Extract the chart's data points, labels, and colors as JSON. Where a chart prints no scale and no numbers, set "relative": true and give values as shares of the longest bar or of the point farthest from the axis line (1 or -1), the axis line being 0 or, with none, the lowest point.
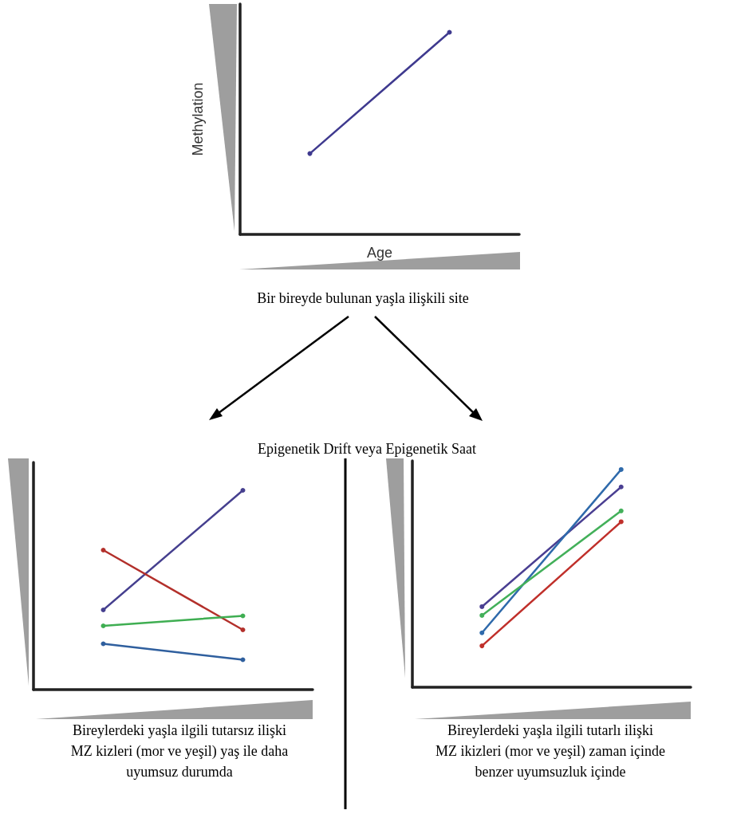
{
  "chart_data": [
    {
      "type": "line",
      "xlabel": "Age",
      "ylabel": "Methylation",
      "categories": [
        null,
        null
      ],
      "relative": true,
      "marker": "circle",
      "series": [
        {
          "color": "#3f3a8f",
          "values": [
            0.4,
            1
          ]
        }
      ],
      "annotations": [
        "Bir bireyde bulunan yaşla ilişkili site",
        "Epigenetik Drift veya Epigenetik Saat"
      ]
    },
    {
      "type": "line",
      "categories": [
        null,
        null
      ],
      "relative": true,
      "marker": "circle",
      "series": [
        {
          "color": "#46408f",
          "values": [
            0.4,
            1
          ]
        },
        {
          "color": "#b3302b",
          "values": [
            0.7,
            0.3
          ]
        },
        {
          "color": "#3fae52",
          "values": [
            0.32,
            0.37
          ]
        },
        {
          "color": "#2f5f9e",
          "values": [
            0.23,
            0.15
          ]
        }
      ],
      "annotations": [
        "Bireylerdeki yaşla ilgili tutarsız ilişki",
        "MZ kizleri (mor ve yeşil) yaş ile daha",
        "uyumsuz durumda"
      ]
    },
    {
      "type": "line",
      "categories": [
        null,
        null
      ],
      "relative": true,
      "marker": "circle",
      "series": [
        {
          "color": "#4a3f92",
          "values": [
            0.37,
            0.92
          ]
        },
        {
          "color": "#2f6aab",
          "values": [
            0.25,
            1
          ]
        },
        {
          "color": "#43b05a",
          "values": [
            0.33,
            0.81
          ]
        },
        {
          "color": "#c0302b",
          "values": [
            0.19,
            0.76
          ]
        }
      ],
      "annotations": [
        "Bireylerdeki yaşla ilgili tutarlı ilişki",
        "MZ ikizleri (mor ve yeşil) zaman içinde",
        "benzer uyumsuzluk içinde"
      ]
    }
  ]
}
